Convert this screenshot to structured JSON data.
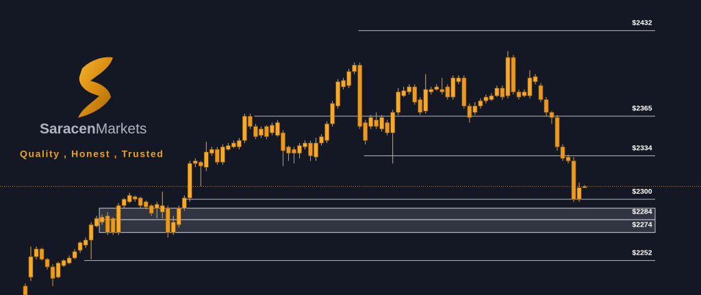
{
  "brand": {
    "name_bold": "Saracen",
    "name_light": "Markets",
    "tagline": "Quality , Honest , Trusted"
  },
  "chart_data": {
    "type": "candlestick",
    "ylim": [
      2225,
      2456
    ],
    "yticks": [
      {
        "value": 2432,
        "label": "$2432"
      },
      {
        "value": 2365,
        "label": "$2365"
      },
      {
        "value": 2334,
        "label": "$2334"
      },
      {
        "value": 2300,
        "label": "$2300"
      },
      {
        "value": 2284,
        "label": "$2284"
      },
      {
        "value": 2274,
        "label": "$2274"
      },
      {
        "value": 2252,
        "label": "$2252"
      }
    ],
    "zones": [
      [
        2293,
        2284
      ],
      [
        2284,
        2274
      ]
    ],
    "last_price": 2310,
    "up_color": "#f7a928",
    "down_color": "#eb9a1c",
    "candles": [
      [
        2232,
        2234,
        2225,
        2225
      ],
      [
        2239,
        2263,
        2236,
        2255
      ],
      [
        2255,
        2263,
        2253,
        2261
      ],
      [
        2261,
        2262,
        2252,
        2253
      ],
      [
        2253,
        2254,
        2245,
        2247
      ],
      [
        2247,
        2249,
        2232,
        2238
      ],
      [
        2239,
        2251,
        2238,
        2250
      ],
      [
        2248,
        2253,
        2247,
        2252
      ],
      [
        2250,
        2256,
        2249,
        2254
      ],
      [
        2254,
        2261,
        2253,
        2259
      ],
      [
        2260,
        2267,
        2258,
        2266
      ],
      [
        2264,
        2270,
        2262,
        2268
      ],
      [
        2268,
        2282,
        2253,
        2280
      ],
      [
        2279,
        2287,
        2278,
        2285
      ],
      [
        2282,
        2288,
        2280,
        2286
      ],
      [
        2287,
        2290,
        2272,
        2274
      ],
      [
        2285,
        2286,
        2272,
        2274
      ],
      [
        2274,
        2297,
        2272,
        2295
      ],
      [
        2295,
        2301,
        2293,
        2300
      ],
      [
        2298,
        2305,
        2297,
        2303
      ],
      [
        2302,
        2303,
        2298,
        2300
      ],
      [
        2301,
        2302,
        2293,
        2295
      ],
      [
        2298,
        2299,
        2292,
        2294
      ],
      [
        2295,
        2296,
        2287,
        2289
      ],
      [
        2293,
        2298,
        2285,
        2296
      ],
      [
        2290,
        2306,
        2285,
        2295
      ],
      [
        2293,
        2295,
        2270,
        2274
      ],
      [
        2274,
        2287,
        2272,
        2282
      ],
      [
        2280,
        2295,
        2278,
        2293
      ],
      [
        2293,
        2303,
        2291,
        2301
      ],
      [
        2301,
        2330,
        2298,
        2328
      ],
      [
        2328,
        2332,
        2325,
        2330
      ],
      [
        2329,
        2330,
        2310,
        2326
      ],
      [
        2325,
        2345,
        2322,
        2337
      ],
      [
        2336,
        2341,
        2334,
        2339
      ],
      [
        2339,
        2341,
        2327,
        2329
      ],
      [
        2329,
        2343,
        2327,
        2341
      ],
      [
        2339,
        2344,
        2338,
        2342
      ],
      [
        2341,
        2346,
        2340,
        2344
      ],
      [
        2341,
        2348,
        2339,
        2346
      ],
      [
        2346,
        2367,
        2344,
        2365
      ],
      [
        2365,
        2367,
        2355,
        2357
      ],
      [
        2357,
        2359,
        2347,
        2349
      ],
      [
        2350,
        2357,
        2348,
        2355
      ],
      [
        2357,
        2358,
        2347,
        2349
      ],
      [
        2352,
        2360,
        2350,
        2358
      ],
      [
        2350,
        2362,
        2349,
        2360
      ],
      [
        2352,
        2354,
        2326,
        2338
      ],
      [
        2341,
        2342,
        2330,
        2336
      ],
      [
        2339,
        2341,
        2328,
        2336
      ],
      [
        2336,
        2344,
        2332,
        2342
      ],
      [
        2341,
        2346,
        2339,
        2344
      ],
      [
        2344,
        2346,
        2330,
        2334
      ],
      [
        2333,
        2348,
        2330,
        2344
      ],
      [
        2344,
        2351,
        2342,
        2349
      ],
      [
        2346,
        2361,
        2344,
        2359
      ],
      [
        2359,
        2377,
        2357,
        2375
      ],
      [
        2373,
        2394,
        2371,
        2392
      ],
      [
        2388,
        2395,
        2386,
        2393
      ],
      [
        2389,
        2402,
        2387,
        2400
      ],
      [
        2400,
        2407,
        2398,
        2405
      ],
      [
        2405,
        2407,
        2355,
        2357
      ],
      [
        2360,
        2362,
        2343,
        2346
      ],
      [
        2357,
        2366,
        2355,
        2364
      ],
      [
        2362,
        2368,
        2355,
        2357
      ],
      [
        2355,
        2366,
        2353,
        2364
      ],
      [
        2360,
        2362,
        2350,
        2352
      ],
      [
        2352,
        2370,
        2328,
        2368
      ],
      [
        2368,
        2387,
        2366,
        2384
      ],
      [
        2381,
        2388,
        2380,
        2385
      ],
      [
        2384,
        2390,
        2382,
        2388
      ],
      [
        2388,
        2390,
        2374,
        2376
      ],
      [
        2378,
        2380,
        2366,
        2368
      ],
      [
        2369,
        2398,
        2367,
        2386
      ],
      [
        2384,
        2388,
        2382,
        2386
      ],
      [
        2386,
        2390,
        2385,
        2388
      ],
      [
        2386,
        2395,
        2382,
        2384
      ],
      [
        2388,
        2390,
        2378,
        2380
      ],
      [
        2380,
        2397,
        2378,
        2395
      ],
      [
        2392,
        2397,
        2390,
        2395
      ],
      [
        2395,
        2397,
        2371,
        2373
      ],
      [
        2373,
        2375,
        2360,
        2364
      ],
      [
        2368,
        2376,
        2366,
        2373
      ],
      [
        2373,
        2379,
        2371,
        2377
      ],
      [
        2377,
        2382,
        2375,
        2380
      ],
      [
        2378,
        2383,
        2377,
        2381
      ],
      [
        2381,
        2389,
        2380,
        2387
      ],
      [
        2387,
        2389,
        2378,
        2380
      ],
      [
        2381,
        2416,
        2379,
        2411
      ],
      [
        2411,
        2413,
        2382,
        2384
      ],
      [
        2384,
        2386,
        2378,
        2380
      ],
      [
        2381,
        2386,
        2380,
        2384
      ],
      [
        2381,
        2401,
        2379,
        2395
      ],
      [
        2392,
        2398,
        2390,
        2396
      ],
      [
        2389,
        2391,
        2376,
        2378
      ],
      [
        2378,
        2380,
        2365,
        2368
      ],
      [
        2368,
        2369,
        2359,
        2364
      ],
      [
        2364,
        2366,
        2338,
        2341
      ],
      [
        2341,
        2343,
        2330,
        2332
      ],
      [
        2333,
        2335,
        2328,
        2330
      ],
      [
        2330,
        2333,
        2298,
        2300
      ],
      [
        2300,
        2313,
        2298,
        2309
      ],
      [
        2309,
        2311,
        2309,
        2310
      ]
    ]
  }
}
